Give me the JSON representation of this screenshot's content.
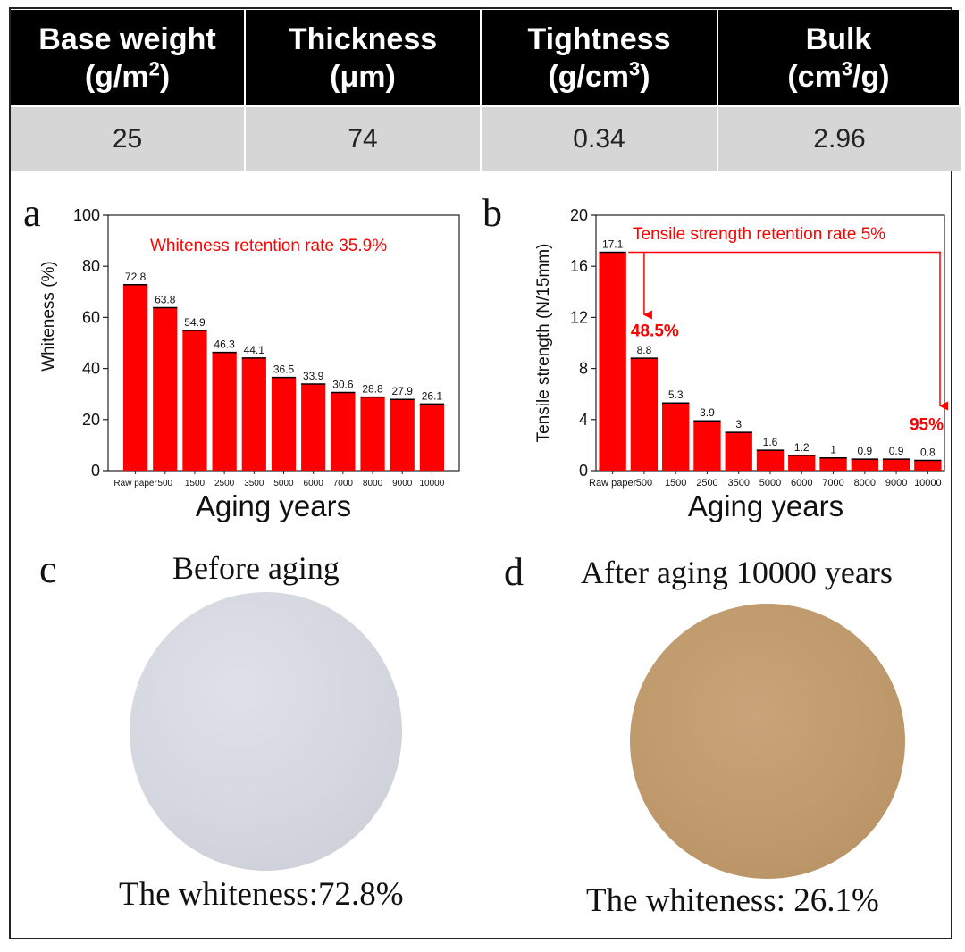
{
  "table": {
    "headers": [
      {
        "line1": "Base weight",
        "unit_pre": "(g/m",
        "unit_sup": "2",
        "unit_post": ")"
      },
      {
        "line1": "Thickness",
        "unit_pre": "(μm)",
        "unit_sup": "",
        "unit_post": ""
      },
      {
        "line1": "Tightness",
        "unit_pre": "(g/cm",
        "unit_sup": "3",
        "unit_post": ")"
      },
      {
        "line1": "Bulk",
        "unit_pre": "(cm",
        "unit_sup": "3",
        "unit_post": "/g)"
      }
    ],
    "values": [
      "25",
      "74",
      "0.34",
      "2.96"
    ]
  },
  "chart_data": [
    {
      "type": "bar",
      "panel": "a",
      "categories": [
        "Raw paper",
        "500",
        "1500",
        "2500",
        "3500",
        "5000",
        "6000",
        "7000",
        "8000",
        "9000",
        "10000"
      ],
      "values": [
        72.8,
        63.8,
        54.9,
        46.3,
        44.1,
        36.5,
        33.9,
        30.6,
        28.8,
        27.9,
        26.1
      ],
      "value_labels": [
        "72.8",
        "63.8",
        "54.9",
        "46.3",
        "44.1",
        "36.5",
        "33.9",
        "30.6",
        "28.8",
        "27.9",
        "26.1"
      ],
      "xlabel": "Aging years",
      "ylabel": "Whiteness (%)",
      "ylim": [
        0,
        100
      ],
      "yticks": [
        "0",
        "20",
        "40",
        "60",
        "80",
        "100"
      ],
      "annotation": "Whiteness retention rate 35.9%",
      "bar_color": "#ff0000"
    },
    {
      "type": "bar",
      "panel": "b",
      "categories": [
        "Raw paper",
        "500",
        "1500",
        "2500",
        "3500",
        "5000",
        "6000",
        "7000",
        "8000",
        "9000",
        "10000"
      ],
      "values": [
        17.1,
        8.8,
        5.3,
        3.9,
        3,
        1.6,
        1.2,
        1,
        0.9,
        0.9,
        0.8
      ],
      "value_labels": [
        "17.1",
        "8.8",
        "5.3",
        "3.9",
        "3",
        "1.6",
        "1.2",
        "1",
        "0.9",
        "0.9",
        "0.8"
      ],
      "xlabel": "Aging years",
      "ylabel": "Tensile strength (N/15mm)",
      "ylim": [
        0,
        20
      ],
      "yticks": [
        "0",
        "4",
        "8",
        "12",
        "16",
        "20"
      ],
      "annotation": "Tensile strength retention rate 5%",
      "drop_labels": [
        "48.5%",
        "95%"
      ],
      "bar_color": "#ff0000"
    }
  ],
  "photos": {
    "c": {
      "letter": "c",
      "title": "Before aging",
      "caption": "The whiteness:72.8%"
    },
    "d": {
      "letter": "d",
      "title": "After aging 10000 years",
      "caption": "The whiteness: 26.1%"
    }
  }
}
